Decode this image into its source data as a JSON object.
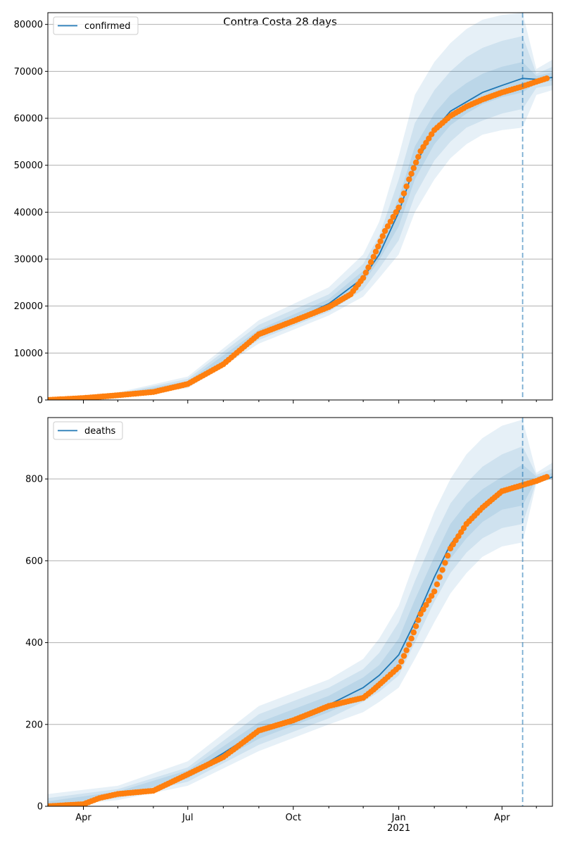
{
  "figure": {
    "title": "Contra Costa 28 days"
  },
  "colors": {
    "model_line": "#1f77b4",
    "observed_points": "#ff7f0e",
    "band": "#1f77b4",
    "grid": "#b0b0b0",
    "forecast_line": "#1f77b4"
  },
  "chart_data": [
    {
      "type": "line",
      "name": "confirmed",
      "legend_label": "confirmed",
      "legend_position": "top-left",
      "grid": "horizontal",
      "x_range": [
        "2020-03-01",
        "2021-05-15"
      ],
      "ylim": [
        0,
        82500
      ],
      "y_ticks": [
        0,
        10000,
        20000,
        30000,
        40000,
        50000,
        60000,
        70000,
        80000
      ],
      "x_ticks": [
        {
          "date": "2020-04-01",
          "label": "Apr"
        },
        {
          "date": "2020-07-01",
          "label": "Jul"
        },
        {
          "date": "2020-10-01",
          "label": "Oct"
        },
        {
          "date": "2021-01-01",
          "label": "Jan",
          "sublabel": "2021"
        },
        {
          "date": "2021-04-01",
          "label": "Apr"
        }
      ],
      "forecast_start": "2021-04-19",
      "model": {
        "x": [
          "2020-03-01",
          "2020-04-01",
          "2020-05-01",
          "2020-06-01",
          "2020-07-01",
          "2020-08-01",
          "2020-09-01",
          "2020-10-01",
          "2020-11-01",
          "2020-12-01",
          "2020-12-15",
          "2021-01-01",
          "2021-01-15",
          "2021-02-01",
          "2021-02-15",
          "2021-03-01",
          "2021-03-15",
          "2021-04-01",
          "2021-04-19",
          "2021-05-01",
          "2021-05-15"
        ],
        "y": [
          0,
          400,
          1000,
          1800,
          3500,
          8000,
          14000,
          17000,
          20500,
          26000,
          31000,
          40000,
          50000,
          57500,
          61500,
          63500,
          65500,
          67000,
          68500,
          68300,
          68700
        ]
      },
      "bands": [
        {
          "x": [
            "2020-03-01",
            "2020-05-01",
            "2020-07-01",
            "2020-09-01",
            "2020-11-01",
            "2020-12-01",
            "2020-12-15",
            "2021-01-01",
            "2021-01-15",
            "2021-02-01",
            "2021-02-15",
            "2021-03-01",
            "2021-03-15",
            "2021-04-01",
            "2021-04-19",
            "2021-05-01",
            "2021-05-15"
          ],
          "lower": [
            0,
            600,
            2500,
            12000,
            18000,
            22000,
            26000,
            31000,
            40000,
            47000,
            51500,
            54500,
            56500,
            57500,
            58000,
            65000,
            66000
          ],
          "upper": [
            200,
            1600,
            5000,
            17000,
            24000,
            31000,
            38000,
            52000,
            65000,
            72000,
            76000,
            79000,
            81000,
            82000,
            82500,
            70500,
            72500
          ]
        },
        {
          "x": [
            "2020-03-01",
            "2020-05-01",
            "2020-07-01",
            "2020-09-01",
            "2020-11-01",
            "2020-12-01",
            "2020-12-15",
            "2021-01-01",
            "2021-01-15",
            "2021-02-01",
            "2021-02-15",
            "2021-03-01",
            "2021-03-15",
            "2021-04-01",
            "2021-04-19",
            "2021-05-01",
            "2021-05-15"
          ],
          "lower": [
            0,
            700,
            2900,
            12800,
            18800,
            23500,
            28000,
            34000,
            43500,
            51000,
            55000,
            58000,
            59500,
            61000,
            62000,
            66500,
            67000
          ],
          "upper": [
            150,
            1400,
            4500,
            16000,
            22500,
            29000,
            35000,
            47000,
            59000,
            66000,
            70000,
            73000,
            75000,
            76500,
            77500,
            69500,
            71000
          ]
        },
        {
          "x": [
            "2020-03-01",
            "2020-05-01",
            "2020-07-01",
            "2020-09-01",
            "2020-11-01",
            "2020-12-01",
            "2020-12-15",
            "2021-01-01",
            "2021-01-15",
            "2021-02-01",
            "2021-02-15",
            "2021-03-01",
            "2021-03-15",
            "2021-04-01",
            "2021-04-19",
            "2021-05-01",
            "2021-05-15"
          ],
          "lower": [
            0,
            850,
            3200,
            13300,
            19500,
            25000,
            29800,
            37000,
            47000,
            54500,
            58500,
            61000,
            63000,
            64500,
            65500,
            67500,
            68000
          ],
          "upper": [
            100,
            1200,
            4000,
            15000,
            21500,
            27500,
            33000,
            43000,
            54000,
            61000,
            65000,
            67500,
            69500,
            71000,
            72000,
            69000,
            69800
          ]
        }
      ],
      "observed": {
        "x": [
          "2020-03-01",
          "2020-04-01",
          "2020-05-01",
          "2020-06-01",
          "2020-07-01",
          "2020-08-01",
          "2020-08-15",
          "2020-09-01",
          "2020-10-01",
          "2020-11-01",
          "2020-11-20",
          "2020-12-01",
          "2020-12-10",
          "2020-12-20",
          "2021-01-01",
          "2021-01-10",
          "2021-01-20",
          "2021-02-01",
          "2021-02-15",
          "2021-03-01",
          "2021-03-15",
          "2021-04-01",
          "2021-04-19",
          "2021-05-01",
          "2021-05-10"
        ],
        "y": [
          0,
          400,
          1000,
          1700,
          3400,
          7600,
          10500,
          14000,
          16800,
          19800,
          22500,
          26000,
          30500,
          36000,
          41000,
          47000,
          53000,
          57500,
          60500,
          62500,
          64000,
          65500,
          66800,
          67800,
          68500
        ]
      }
    },
    {
      "type": "line",
      "name": "deaths",
      "legend_label": "deaths",
      "legend_position": "top-left",
      "grid": "horizontal",
      "x_range": [
        "2020-03-01",
        "2021-05-15"
      ],
      "ylim": [
        0,
        950
      ],
      "y_ticks": [
        0,
        200,
        400,
        600,
        800
      ],
      "x_ticks": [
        {
          "date": "2020-04-01",
          "label": "Apr"
        },
        {
          "date": "2020-07-01",
          "label": "Jul"
        },
        {
          "date": "2020-10-01",
          "label": "Oct"
        },
        {
          "date": "2021-01-01",
          "label": "Jan",
          "sublabel": "2021"
        },
        {
          "date": "2021-04-01",
          "label": "Apr"
        }
      ],
      "forecast_start": "2021-04-19",
      "model": {
        "x": [
          "2020-03-01",
          "2020-04-01",
          "2020-05-01",
          "2020-06-01",
          "2020-07-01",
          "2020-08-01",
          "2020-09-01",
          "2020-10-01",
          "2020-11-01",
          "2020-12-01",
          "2020-12-15",
          "2021-01-01",
          "2021-01-15",
          "2021-02-01",
          "2021-02-15",
          "2021-03-01",
          "2021-03-15",
          "2021-04-01",
          "2021-04-19",
          "2021-05-01",
          "2021-05-15"
        ],
        "y": [
          0,
          8,
          30,
          42,
          78,
          130,
          185,
          215,
          248,
          290,
          320,
          370,
          450,
          560,
          640,
          690,
          730,
          765,
          780,
          790,
          805
        ]
      },
      "bands": [
        {
          "x": [
            "2020-03-01",
            "2020-05-01",
            "2020-07-01",
            "2020-09-01",
            "2020-11-01",
            "2020-12-01",
            "2020-12-15",
            "2021-01-01",
            "2021-01-15",
            "2021-02-01",
            "2021-02-15",
            "2021-03-01",
            "2021-03-15",
            "2021-04-01",
            "2021-04-19",
            "2021-05-01",
            "2021-05-15"
          ],
          "lower": [
            0,
            15,
            50,
            135,
            200,
            230,
            255,
            290,
            360,
            450,
            520,
            570,
            610,
            635,
            645,
            790,
            800
          ],
          "upper": [
            30,
            50,
            110,
            245,
            310,
            360,
            410,
            490,
            600,
            720,
            800,
            860,
            900,
            930,
            945,
            815,
            840
          ]
        },
        {
          "x": [
            "2020-03-01",
            "2020-05-01",
            "2020-07-01",
            "2020-09-01",
            "2020-11-01",
            "2020-12-01",
            "2020-12-15",
            "2021-01-01",
            "2021-01-15",
            "2021-02-01",
            "2021-02-15",
            "2021-03-01",
            "2021-03-15",
            "2021-04-01",
            "2021-04-19",
            "2021-05-01",
            "2021-05-15"
          ],
          "lower": [
            0,
            20,
            60,
            150,
            215,
            255,
            280,
            320,
            400,
            500,
            570,
            620,
            655,
            680,
            690,
            795,
            803
          ],
          "upper": [
            20,
            42,
            95,
            225,
            290,
            335,
            375,
            450,
            550,
            660,
            740,
            790,
            830,
            860,
            880,
            810,
            825
          ]
        },
        {
          "x": [
            "2020-03-01",
            "2020-05-01",
            "2020-07-01",
            "2020-09-01",
            "2020-11-01",
            "2020-12-01",
            "2020-12-15",
            "2021-01-01",
            "2021-01-15",
            "2021-02-01",
            "2021-02-15",
            "2021-03-01",
            "2021-03-15",
            "2021-04-01",
            "2021-04-19",
            "2021-05-01",
            "2021-05-15"
          ],
          "lower": [
            0,
            25,
            68,
            165,
            230,
            270,
            300,
            345,
            425,
            530,
            605,
            655,
            695,
            725,
            735,
            800,
            806
          ],
          "upper": [
            12,
            36,
            88,
            205,
            270,
            315,
            345,
            410,
            505,
            610,
            690,
            740,
            775,
            805,
            835,
            806,
            814
          ]
        }
      ],
      "observed": {
        "x": [
          "2020-03-01",
          "2020-04-01",
          "2020-04-15",
          "2020-05-01",
          "2020-06-01",
          "2020-07-01",
          "2020-08-01",
          "2020-09-01",
          "2020-10-01",
          "2020-11-01",
          "2020-11-20",
          "2020-12-01",
          "2020-12-10",
          "2020-12-20",
          "2021-01-01",
          "2021-01-10",
          "2021-01-20",
          "2021-02-01",
          "2021-02-15",
          "2021-03-01",
          "2021-03-15",
          "2021-04-01",
          "2021-04-19",
          "2021-05-01",
          "2021-05-10"
        ],
        "y": [
          0,
          5,
          20,
          30,
          38,
          78,
          120,
          185,
          210,
          245,
          258,
          265,
          285,
          310,
          340,
          395,
          470,
          525,
          630,
          690,
          730,
          770,
          785,
          795,
          805
        ]
      }
    }
  ]
}
